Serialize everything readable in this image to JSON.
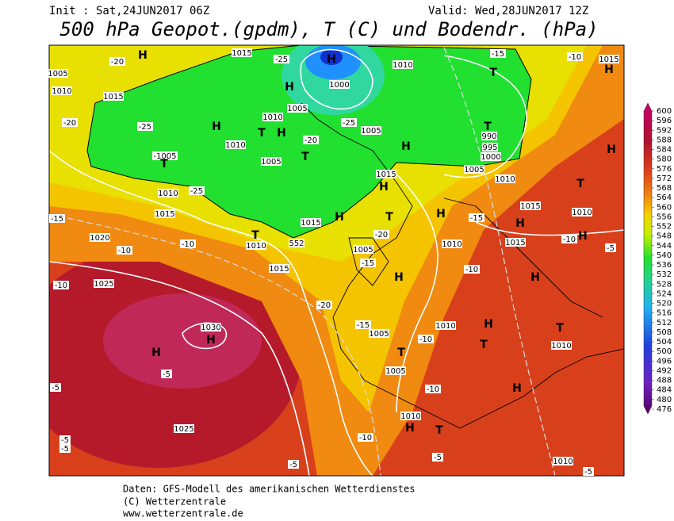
{
  "header": {
    "init": "Init : Sat,24JUN2017 06Z",
    "valid": "Valid: Wed,28JUN2017 12Z",
    "title": "500 hPa Geopot.(gpdm), T (C) und Bodendr. (hPa)"
  },
  "colorbar": {
    "ticks": [
      600,
      596,
      592,
      588,
      584,
      580,
      576,
      572,
      568,
      564,
      560,
      556,
      552,
      548,
      544,
      540,
      536,
      532,
      528,
      524,
      520,
      516,
      512,
      508,
      504,
      500,
      496,
      492,
      488,
      484,
      480,
      476
    ]
  },
  "map_labels": [
    "1015",
    "H",
    "-20",
    "-25",
    "H",
    "1010",
    "-15",
    "-10",
    "1015",
    "H",
    "1005",
    "1010",
    "1015",
    "T",
    "H",
    "1000",
    "1005",
    "-25",
    "1010",
    "-20",
    "H",
    "T",
    "H",
    "-25",
    "1005",
    "T",
    "990",
    "H",
    "1010",
    "-20",
    "H",
    "995",
    "-1005",
    "T",
    "1005",
    "T",
    "1000",
    "1005",
    "1010",
    "1010",
    "-25",
    "1015",
    "H",
    "T",
    "1015",
    "H",
    "1015",
    "T",
    "H",
    "-15",
    "1015",
    "H",
    "1010",
    "-15",
    "1020",
    "T",
    "552",
    "-20",
    "1015",
    "-10",
    "H",
    "-10",
    "-10",
    "1010",
    "1005",
    "1010",
    "-5",
    "1015",
    "-15",
    "H",
    "-10",
    "H",
    "1025",
    "-10",
    "-20",
    "1030",
    "H",
    "H",
    "-15",
    "1010",
    "H",
    "T",
    "1005",
    "-10",
    "T",
    "1010",
    "T",
    "-5",
    "1005",
    "-5",
    "-10",
    "H",
    "1010",
    "H",
    "T",
    "1025",
    "-5",
    "-5",
    "-10",
    "-5",
    "-5",
    "1010",
    "-5"
  ],
  "footer": {
    "source": "Daten: GFS-Modell des amerikanischen Wetterdienstes",
    "copyright": "(C) Wetterzentrale",
    "url": "www.wetterzentrale.de"
  }
}
